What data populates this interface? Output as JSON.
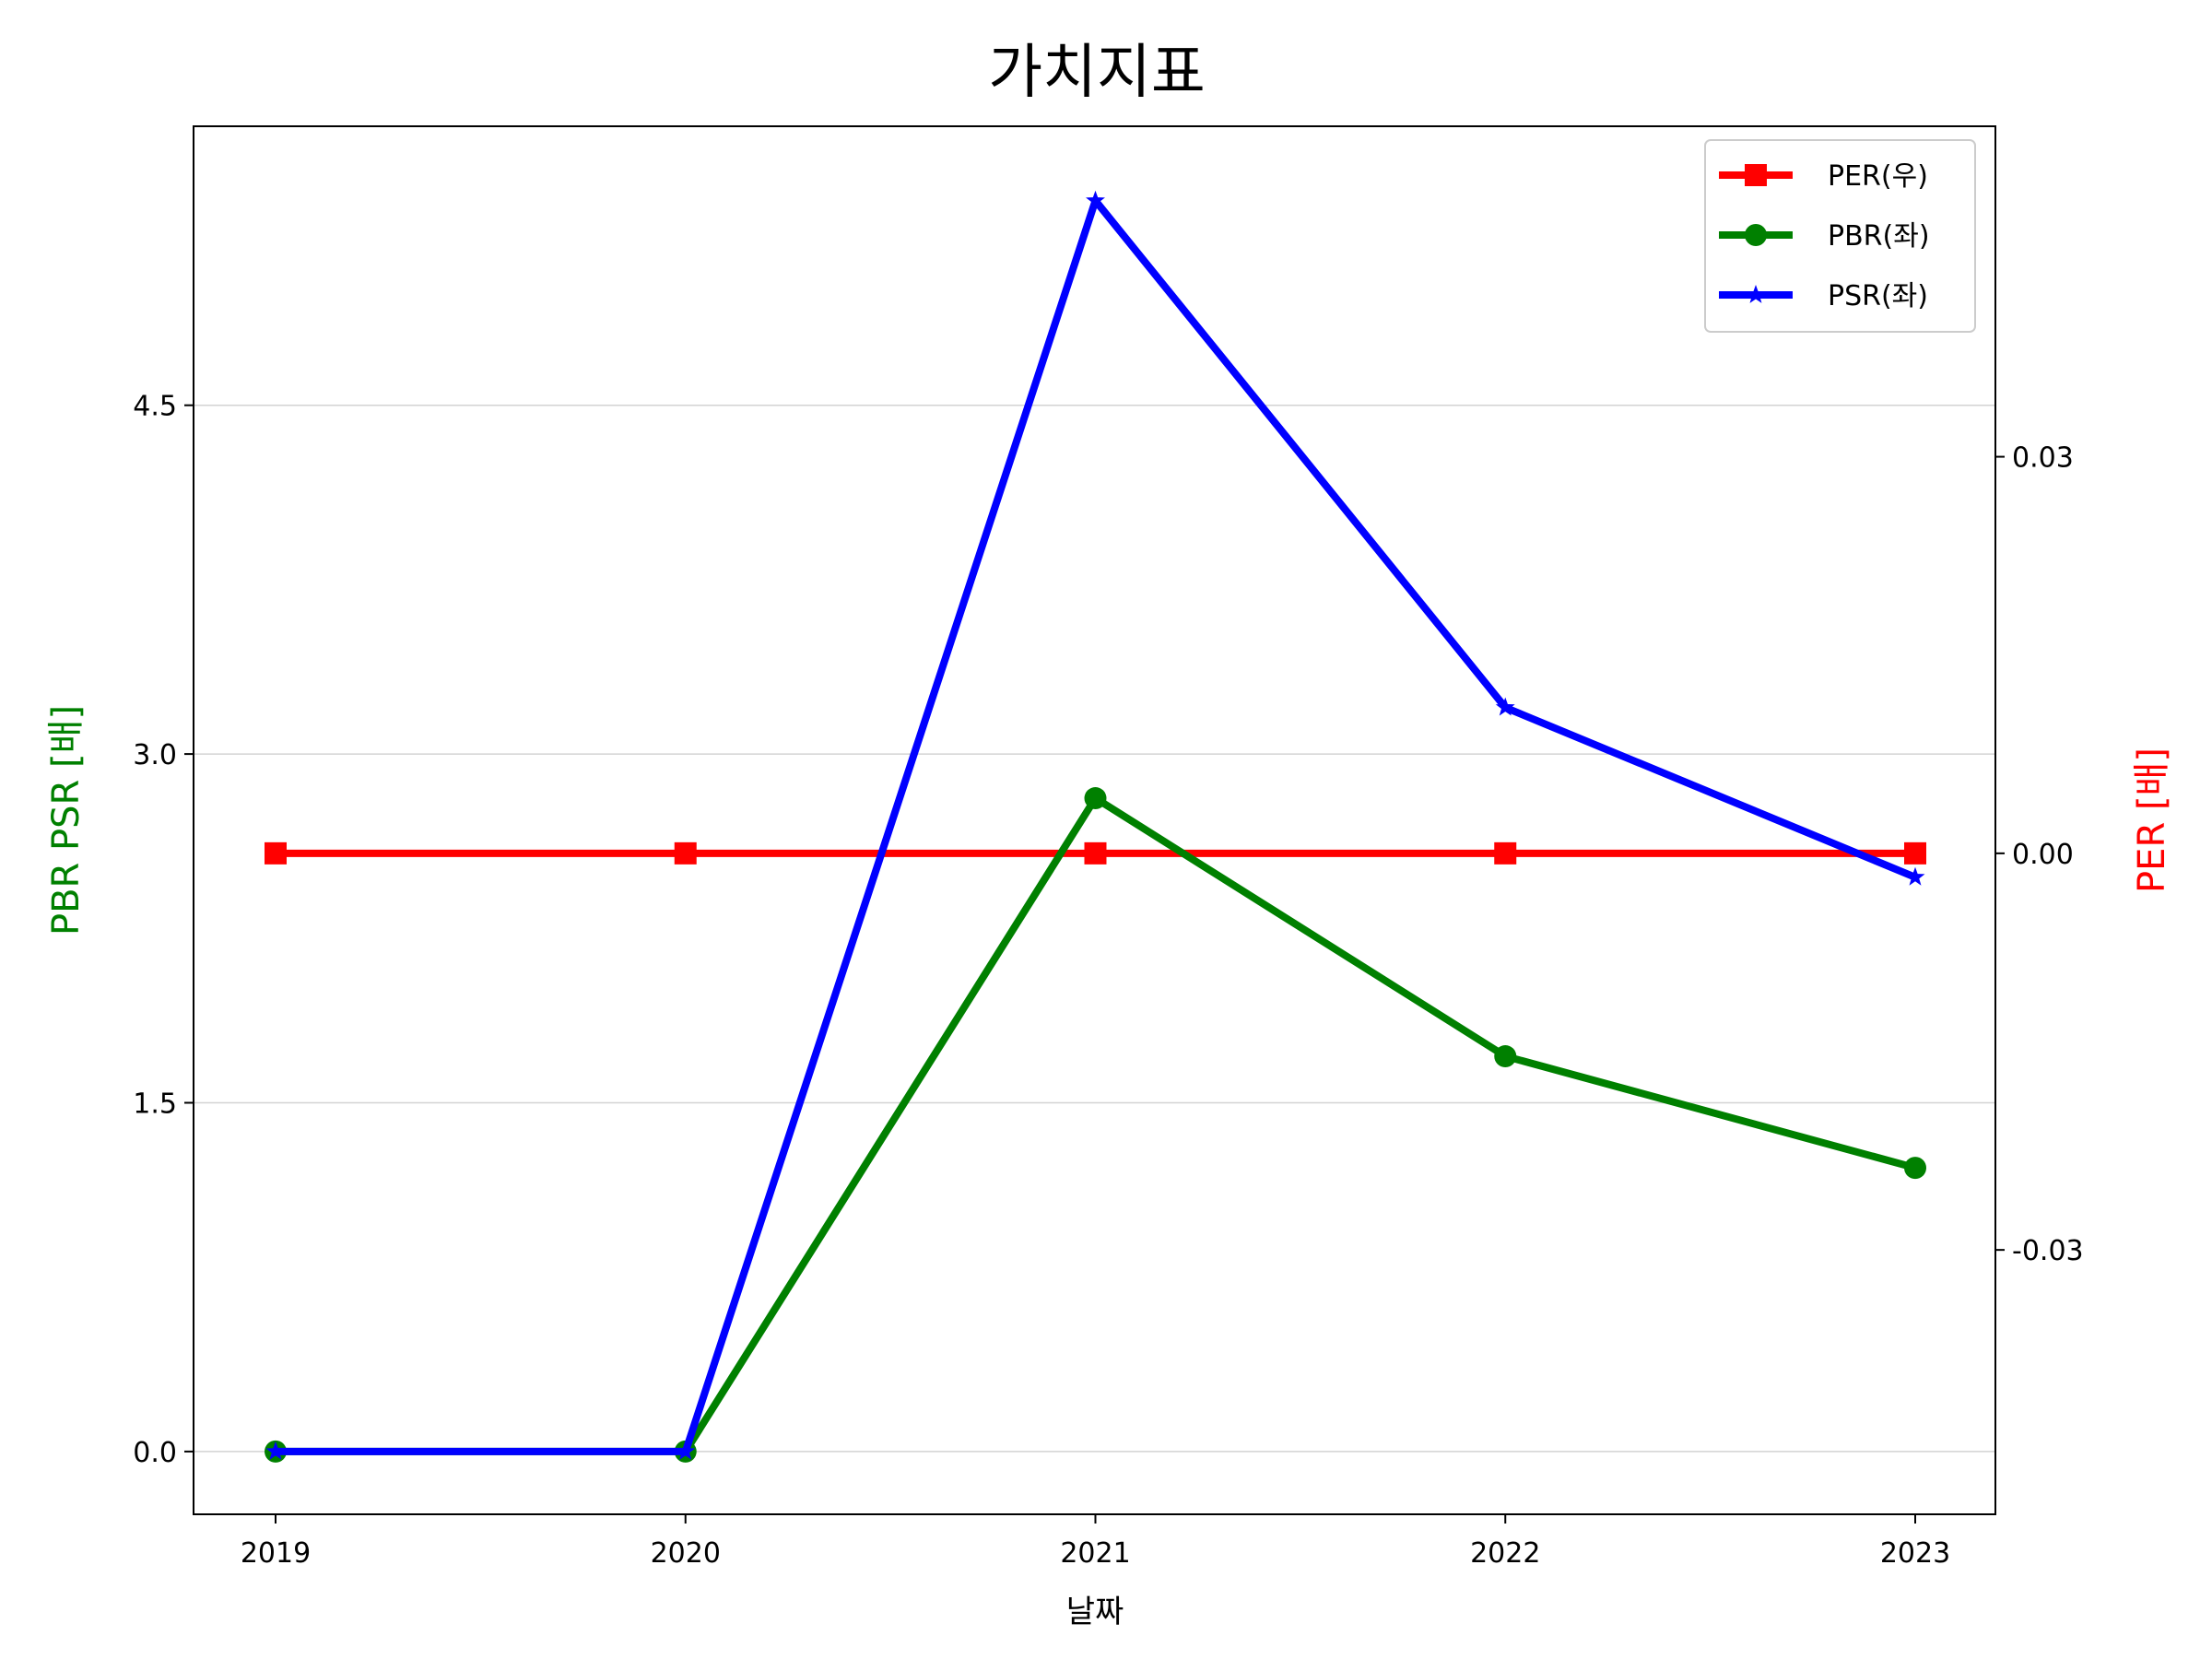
{
  "chart_data": {
    "type": "line",
    "title": "가치지표",
    "xlabel": "날짜",
    "ylabel_left": "PBR PSR [배]",
    "ylabel_right": "PER [배]",
    "categories": [
      "2019",
      "2020",
      "2021",
      "2022",
      "2023"
    ],
    "left_axis": {
      "ylim": [
        -0.27,
        5.7
      ],
      "ticks": [
        0.0,
        1.5,
        3.0,
        4.5
      ],
      "tick_labels": [
        "0.0",
        "1.5",
        "3.0",
        "4.5"
      ],
      "label_color": "#008000"
    },
    "right_axis": {
      "ylim": [
        -0.05,
        0.055
      ],
      "ticks": [
        -0.03,
        0.0,
        0.03
      ],
      "tick_labels": [
        "-0.03",
        "0.00",
        "0.03"
      ],
      "label_color": "#ff0000"
    },
    "grid": "horizontal",
    "legend_position": "top-right",
    "series": [
      {
        "name": "PER(우)",
        "axis": "right",
        "color": "#ff0000",
        "marker": "square",
        "values": [
          0,
          0,
          0,
          0,
          0
        ]
      },
      {
        "name": "PBR(좌)",
        "axis": "left",
        "color": "#008000",
        "marker": "circle",
        "values": [
          0,
          0,
          2.81,
          1.7,
          1.22
        ]
      },
      {
        "name": "PSR(좌)",
        "axis": "left",
        "color": "#0000ff",
        "marker": "star",
        "values": [
          0,
          0,
          5.38,
          3.2,
          2.47
        ]
      }
    ]
  }
}
